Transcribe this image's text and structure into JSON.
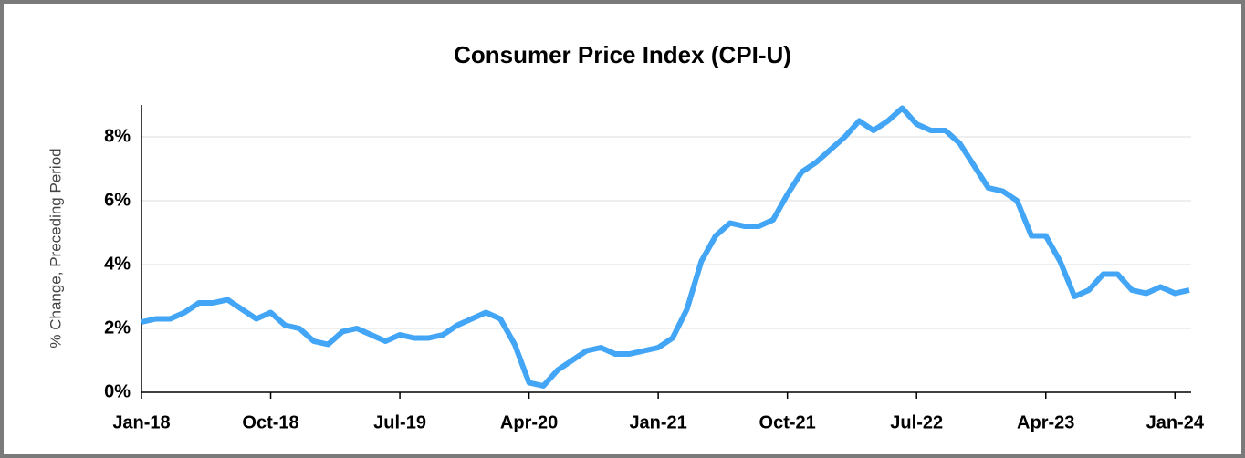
{
  "chart_data": {
    "type": "line",
    "title": "Consumer Price Index (CPI-U)",
    "y_label": "% Change, Preceding Period",
    "categories": [
      "Jan-18",
      null,
      null,
      null,
      null,
      null,
      null,
      null,
      null,
      "Oct-18",
      null,
      null,
      null,
      null,
      null,
      null,
      null,
      null,
      "Jul-19",
      null,
      null,
      null,
      null,
      null,
      null,
      null,
      null,
      "Apr-20",
      null,
      null,
      null,
      null,
      null,
      null,
      null,
      null,
      "Jan-21",
      null,
      null,
      null,
      null,
      null,
      null,
      null,
      null,
      "Oct-21",
      null,
      null,
      null,
      null,
      null,
      null,
      null,
      null,
      "Jul-22",
      null,
      null,
      null,
      null,
      null,
      null,
      null,
      null,
      "Apr-23",
      null,
      null,
      null,
      null,
      null,
      null,
      null,
      null,
      "Jan-24",
      null
    ],
    "series": [
      {
        "name": "CPI-U",
        "color": "#42a5f5",
        "values": [
          2.2,
          2.3,
          2.3,
          2.5,
          2.8,
          2.8,
          2.9,
          2.6,
          2.3,
          2.5,
          2.1,
          2.0,
          1.6,
          1.5,
          1.9,
          2.0,
          1.8,
          1.6,
          1.8,
          1.7,
          1.7,
          1.8,
          2.1,
          2.3,
          2.5,
          2.3,
          1.5,
          0.3,
          0.2,
          0.7,
          1.0,
          1.3,
          1.4,
          1.2,
          1.2,
          1.3,
          1.4,
          1.7,
          2.6,
          4.1,
          4.9,
          5.3,
          5.2,
          5.2,
          5.4,
          6.2,
          6.9,
          7.2,
          7.6,
          8.0,
          8.5,
          8.2,
          8.5,
          8.9,
          8.4,
          8.2,
          8.2,
          7.8,
          7.1,
          6.4,
          6.3,
          6.0,
          4.9,
          4.9,
          4.1,
          3.0,
          3.2,
          3.7,
          3.7,
          3.2,
          3.1,
          3.3,
          3.1,
          3.2
        ]
      }
    ],
    "ylim": [
      0,
      9
    ],
    "yticks": [
      {
        "value": 0,
        "label": "0%"
      },
      {
        "value": 2,
        "label": "2%"
      },
      {
        "value": 4,
        "label": "4%"
      },
      {
        "value": 6,
        "label": "6%"
      },
      {
        "value": 8,
        "label": "8%"
      }
    ],
    "grid": true
  }
}
